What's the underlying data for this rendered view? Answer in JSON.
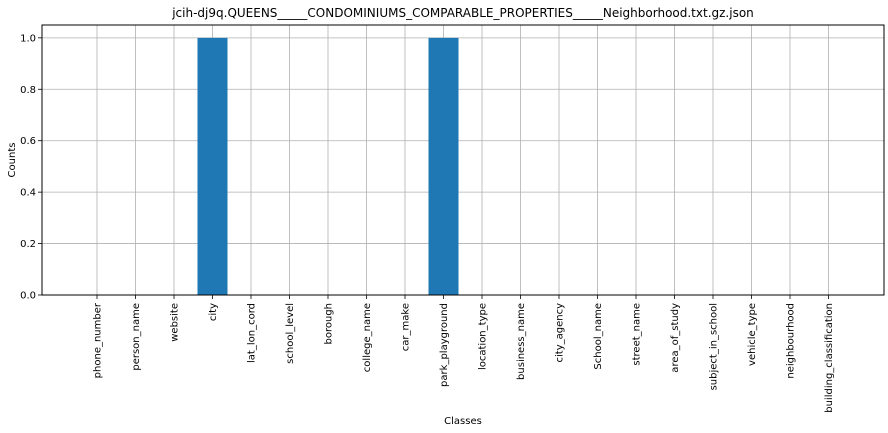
{
  "chart_data": {
    "type": "bar",
    "title": "jcih-dj9q.QUEENS_____CONDOMINIUMS_COMPARABLE_PROPERTIES_____Neighborhood.txt.gz.json",
    "xlabel": "Classes",
    "ylabel": "Counts",
    "categories": [
      "phone_number",
      "person_name",
      "website",
      "city",
      "lat_lon_cord",
      "school_level",
      "borough",
      "college_name",
      "car_make",
      "park_playground",
      "location_type",
      "business_name",
      "city_agency",
      "School_name",
      "street_name",
      "area_of_study",
      "subject_in_school",
      "vehicle_type",
      "neighbourhood",
      "building_classification"
    ],
    "values": [
      0,
      0,
      0,
      1,
      0,
      0,
      0,
      0,
      0,
      1,
      0,
      0,
      0,
      0,
      0,
      0,
      0,
      0,
      0,
      0
    ],
    "ylim": [
      0,
      1.05
    ],
    "yticks": [
      "0.0",
      "0.2",
      "0.4",
      "0.6",
      "0.8",
      "1.0"
    ],
    "grid": true,
    "bar_color": "#1f77b4"
  }
}
